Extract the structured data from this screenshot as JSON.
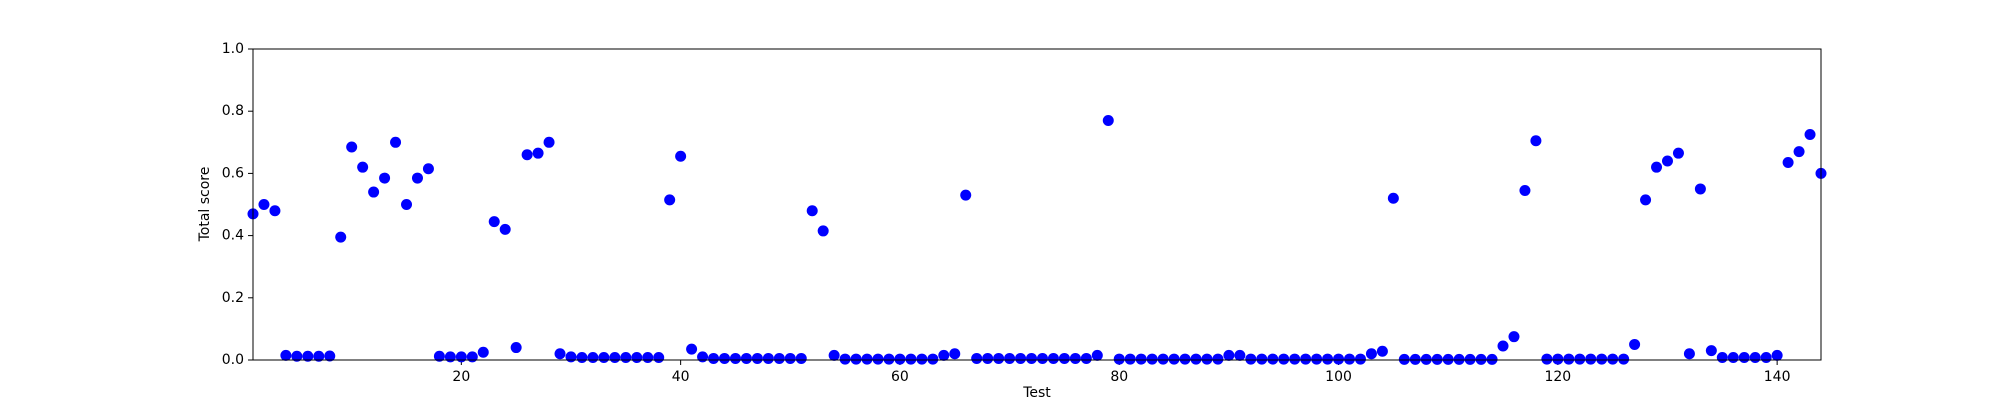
{
  "chart_data": {
    "type": "scatter",
    "xlabel": "Test",
    "ylabel": "Total score",
    "color": "#0000ff",
    "x": [
      1,
      2,
      3,
      4,
      5,
      6,
      7,
      8,
      9,
      10,
      11,
      12,
      13,
      14,
      15,
      16,
      17,
      18,
      19,
      20,
      21,
      22,
      23,
      24,
      25,
      26,
      27,
      28,
      29,
      30,
      31,
      32,
      33,
      34,
      35,
      36,
      37,
      38,
      39,
      40,
      41,
      42,
      43,
      44,
      45,
      46,
      47,
      48,
      49,
      50,
      51,
      52,
      53,
      54,
      55,
      56,
      57,
      58,
      59,
      60,
      61,
      62,
      63,
      64,
      65,
      66,
      67,
      68,
      69,
      70,
      71,
      72,
      73,
      74,
      75,
      76,
      77,
      78,
      79,
      80,
      81,
      82,
      83,
      84,
      85,
      86,
      87,
      88,
      89,
      90,
      91,
      92,
      93,
      94,
      95,
      96,
      97,
      98,
      99,
      100,
      101,
      102,
      103,
      104,
      105,
      106,
      107,
      108,
      109,
      110,
      111,
      112,
      113,
      114,
      115,
      116,
      117,
      118,
      119,
      120,
      121,
      122,
      123,
      124,
      125,
      126,
      127,
      128,
      129,
      130,
      131,
      132,
      133,
      134,
      135,
      136,
      137,
      138,
      139,
      140,
      141,
      142,
      143,
      144
    ],
    "values": [
      0.47,
      0.5,
      0.48,
      0.015,
      0.012,
      0.012,
      0.012,
      0.013,
      0.395,
      0.685,
      0.62,
      0.54,
      0.585,
      0.7,
      0.5,
      0.585,
      0.615,
      0.012,
      0.01,
      0.01,
      0.01,
      0.025,
      0.445,
      0.42,
      0.04,
      0.66,
      0.665,
      0.7,
      0.02,
      0.01,
      0.008,
      0.008,
      0.008,
      0.008,
      0.008,
      0.008,
      0.008,
      0.008,
      0.515,
      0.655,
      0.035,
      0.01,
      0.005,
      0.005,
      0.005,
      0.005,
      0.005,
      0.005,
      0.005,
      0.005,
      0.005,
      0.48,
      0.415,
      0.015,
      0.003,
      0.003,
      0.003,
      0.003,
      0.003,
      0.003,
      0.003,
      0.003,
      0.003,
      0.015,
      0.02,
      0.53,
      0.005,
      0.005,
      0.005,
      0.005,
      0.005,
      0.005,
      0.005,
      0.005,
      0.005,
      0.005,
      0.005,
      0.015,
      0.77,
      0.003,
      0.003,
      0.003,
      0.003,
      0.003,
      0.003,
      0.003,
      0.003,
      0.003,
      0.003,
      0.015,
      0.015,
      0.003,
      0.003,
      0.003,
      0.003,
      0.003,
      0.003,
      0.003,
      0.003,
      0.003,
      0.003,
      0.003,
      0.02,
      0.028,
      0.52,
      0.002,
      0.002,
      0.002,
      0.002,
      0.002,
      0.002,
      0.002,
      0.002,
      0.002,
      0.045,
      0.075,
      0.545,
      0.705,
      0.003,
      0.003,
      0.003,
      0.003,
      0.003,
      0.003,
      0.003,
      0.003,
      0.05,
      0.515,
      0.62,
      0.64,
      0.665,
      0.02,
      0.55,
      0.03,
      0.008,
      0.008,
      0.008,
      0.008,
      0.008,
      0.015,
      0.635,
      0.67,
      0.725,
      0.6
    ],
    "xlim": [
      1,
      144
    ],
    "xticks": [
      20,
      40,
      60,
      80,
      100,
      120,
      140
    ],
    "ylim": [
      0,
      1
    ],
    "yticks": [
      {
        "value": 0,
        "label": "0.0"
      },
      {
        "value": 0.2,
        "label": "0.2"
      },
      {
        "value": 0.4,
        "label": "0.4"
      },
      {
        "value": 0.6,
        "label": "0.6"
      },
      {
        "value": 0.8,
        "label": "0.8"
      },
      {
        "value": 1,
        "label": "1.0"
      }
    ],
    "grid": false
  }
}
